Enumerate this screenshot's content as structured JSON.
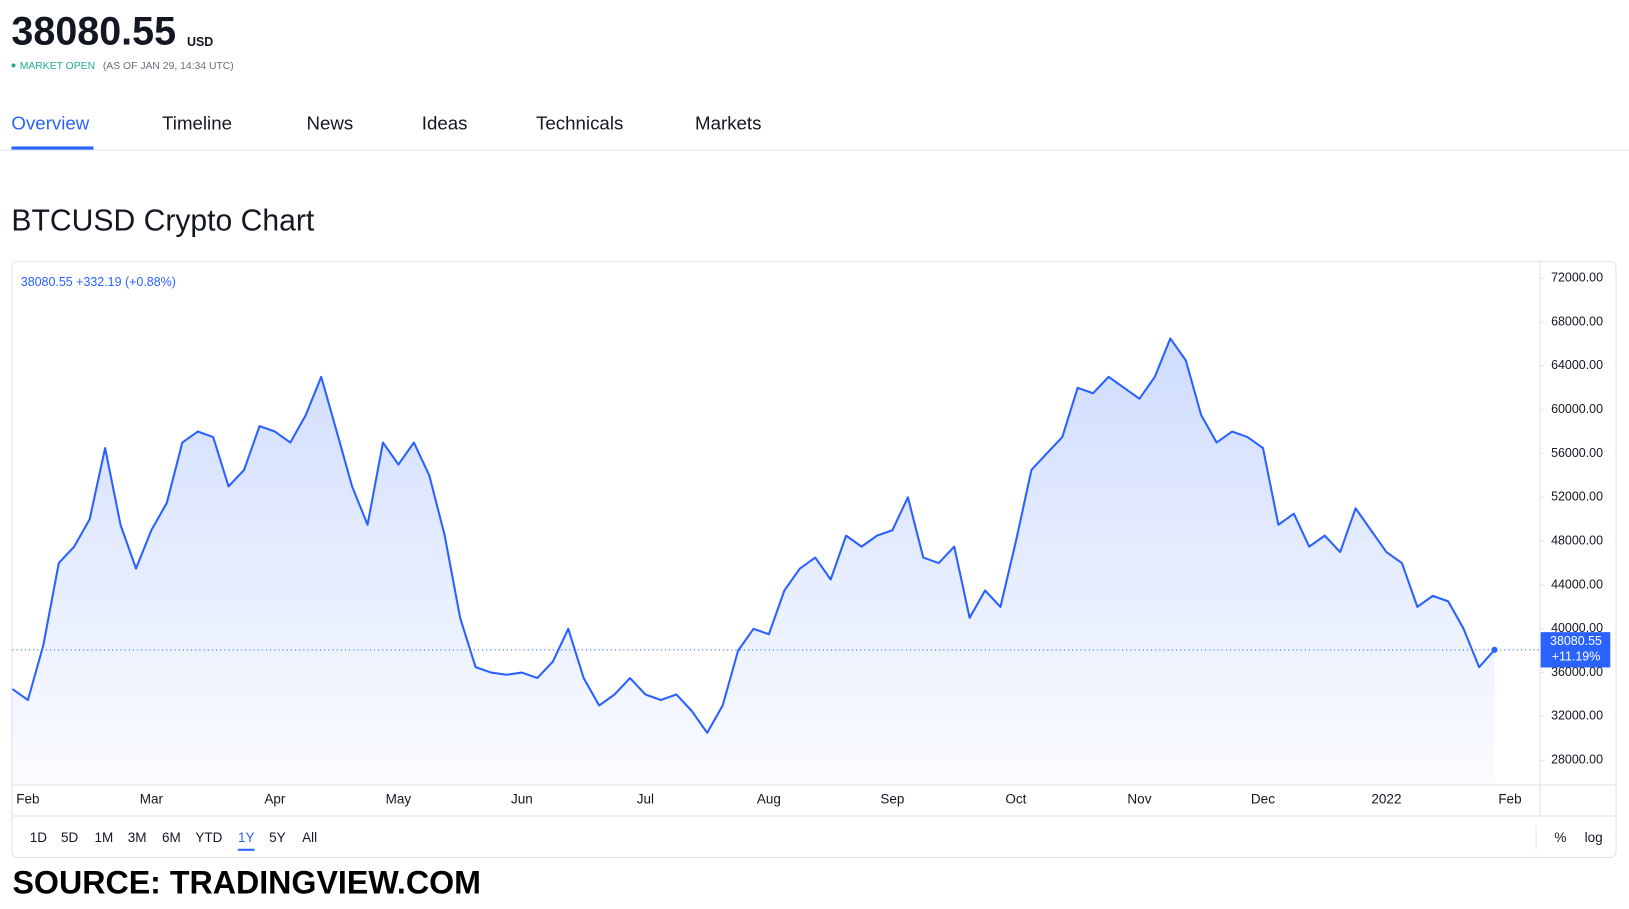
{
  "header": {
    "price": "38080.55",
    "currency": "USD",
    "status": "MARKET OPEN",
    "as_of": "(AS OF JAN 29, 14:34 UTC)"
  },
  "tabs": [
    "Overview",
    "Timeline",
    "News",
    "Ideas",
    "Technicals",
    "Markets"
  ],
  "chart_data": {
    "type": "line",
    "title": "BTCUSD Crypto Chart",
    "quote": "38080.55 +332.19 (+0.88%)",
    "price_label": "38080.55",
    "change_label": "+11.19%",
    "color": "#2962ff",
    "area": true,
    "grid": false,
    "categories": [
      null,
      "Feb",
      null,
      null,
      null,
      null,
      null,
      null,
      null,
      "Mar",
      null,
      null,
      null,
      null,
      null,
      null,
      null,
      "Apr",
      null,
      null,
      null,
      null,
      null,
      null,
      null,
      "May",
      null,
      null,
      null,
      null,
      null,
      null,
      null,
      "Jun",
      null,
      null,
      null,
      null,
      null,
      null,
      null,
      "Jul",
      null,
      null,
      null,
      null,
      null,
      null,
      null,
      "Aug",
      null,
      null,
      null,
      null,
      null,
      null,
      null,
      "Sep",
      null,
      null,
      null,
      null,
      null,
      null,
      null,
      "Oct",
      null,
      null,
      null,
      null,
      null,
      null,
      null,
      "Nov",
      null,
      null,
      null,
      null,
      null,
      null,
      null,
      "Dec",
      null,
      null,
      null,
      null,
      null,
      null,
      null,
      "2022",
      null,
      null,
      null,
      null,
      null,
      null,
      null,
      "Feb"
    ],
    "values": [
      34500,
      33500,
      38500,
      46000,
      47500,
      50000,
      56500,
      49500,
      45500,
      49000,
      51500,
      57000,
      58000,
      57500,
      53000,
      54500,
      58500,
      58000,
      57000,
      59500,
      63000,
      58000,
      53000,
      49500,
      57000,
      55000,
      57000,
      54000,
      48500,
      41000,
      36500,
      36000,
      35800,
      36000,
      35500,
      37000,
      40000,
      35500,
      33000,
      34000,
      35500,
      34000,
      33500,
      34000,
      32500,
      30500,
      33000,
      38000,
      40000,
      39500,
      43500,
      45500,
      46500,
      44500,
      48500,
      47500,
      48500,
      49000,
      52000,
      46500,
      46000,
      47500,
      41000,
      43500,
      42000,
      48000,
      54500,
      56000,
      57500,
      62000,
      61500,
      63000,
      62000,
      61000,
      63000,
      66500,
      64500,
      59500,
      57000,
      58000,
      57500,
      56500,
      49500,
      50500,
      47500,
      48500,
      47000,
      51000,
      49000,
      47000,
      46000,
      42000,
      43000,
      42500,
      40000,
      36500,
      38080.55,
      null
    ],
    "ylim": [
      25800,
      73500
    ],
    "yticks": [
      {
        "value": 28000,
        "label": "28000.00"
      },
      {
        "value": 32000,
        "label": "32000.00"
      },
      {
        "value": 36000,
        "label": "36000.00"
      },
      {
        "value": 40000,
        "label": "40000.00"
      },
      {
        "value": 44000,
        "label": "44000.00"
      },
      {
        "value": 48000,
        "label": "48000.00"
      },
      {
        "value": 52000,
        "label": "52000.00"
      },
      {
        "value": 56000,
        "label": "56000.00"
      },
      {
        "value": 60000,
        "label": "60000.00"
      },
      {
        "value": 64000,
        "label": "64000.00"
      },
      {
        "value": 68000,
        "label": "68000.00"
      },
      {
        "value": 72000,
        "label": "72000.00"
      }
    ]
  },
  "range_buttons": [
    "1D",
    "5D",
    "1M",
    "3M",
    "6M",
    "YTD",
    "1Y",
    "5Y",
    "All"
  ],
  "scale_options": [
    "%",
    "log"
  ],
  "source": "SOURCE: TRADINGVIEW.COM"
}
